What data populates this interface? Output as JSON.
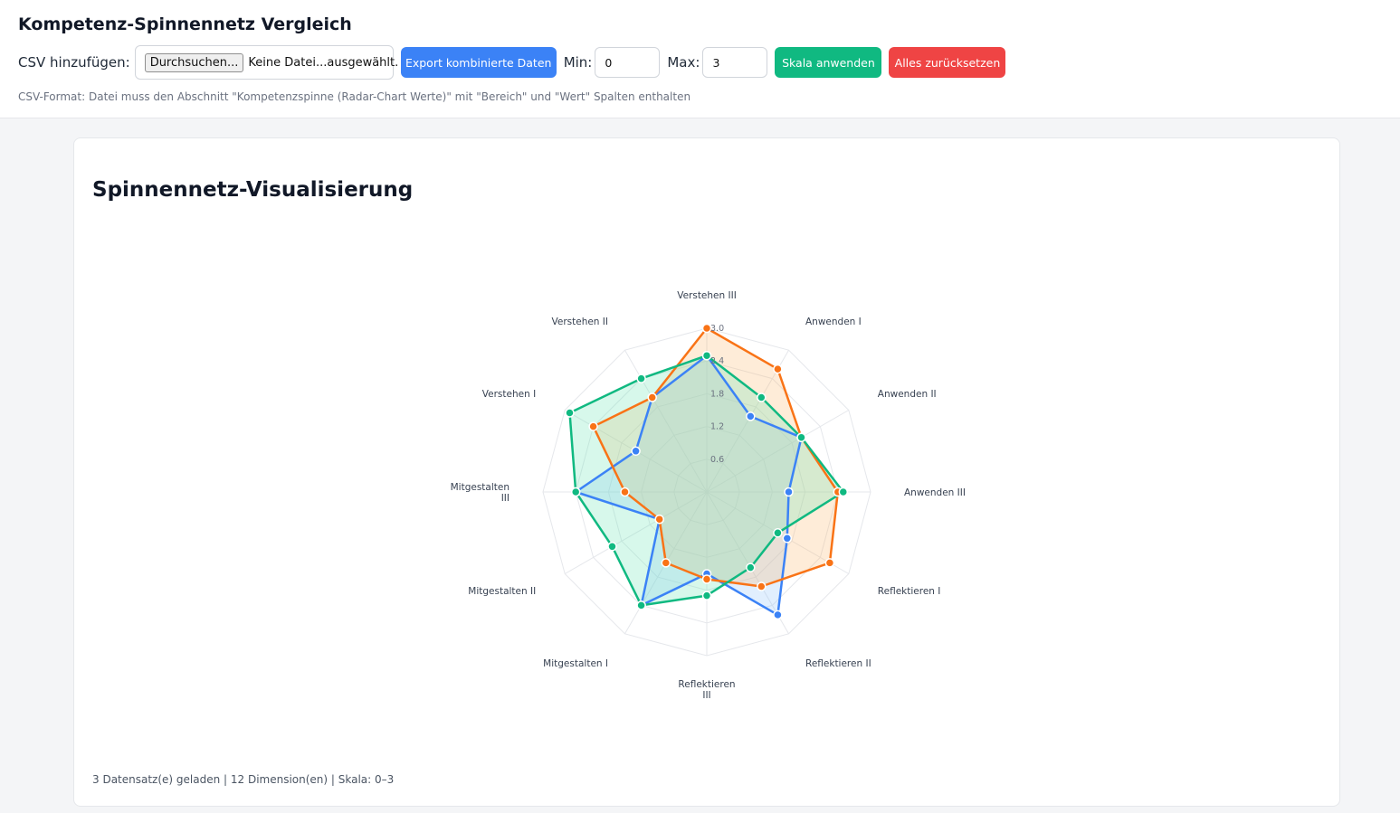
{
  "header": {
    "title": "Kompetenz-Spinnennetz Vergleich",
    "csv_label": "CSV hinzufügen:",
    "file_button": "Durchsuchen...",
    "file_status": "Keine Datei...ausgewählt.",
    "export_button": "Export kombinierte Daten",
    "min_label": "Min:",
    "min_value": "0",
    "max_label": "Max:",
    "max_value": "3",
    "apply_button": "Skala anwenden",
    "reset_button": "Alles zurücksetzen",
    "hint": "CSV-Format: Datei muss den Abschnitt \"Kompetenzspinne (Radar-Chart Werte)\" mit \"Bereich\" und \"Wert\" Spalten enthalten"
  },
  "card": {
    "title": "Spinnennetz-Visualisierung",
    "status": "3 Datensatz(e) geladen | 12 Dimension(en) | Skala: 0–3"
  },
  "colors": {
    "blue": "#3b82f6",
    "orange": "#f97316",
    "green": "#10b981",
    "red": "#ef4444"
  },
  "chart_data": {
    "type": "radar",
    "axes": [
      "Verstehen III",
      "Anwenden I",
      "Anwenden II",
      "Anwenden III",
      "Reflektieren I",
      "Reflektieren II",
      "Reflektieren III",
      "Mitgestalten I",
      "Mitgestalten II",
      "Mitgestalten III",
      "Verstehen I",
      "Verstehen II"
    ],
    "axis_label_lines": [
      [
        "Verstehen III"
      ],
      [
        "Anwenden I"
      ],
      [
        "Anwenden II"
      ],
      [
        "Anwenden III"
      ],
      [
        "Reflektieren I"
      ],
      [
        "Reflektieren II"
      ],
      [
        "Reflektieren",
        "III"
      ],
      [
        "Mitgestalten I"
      ],
      [
        "Mitgestalten II"
      ],
      [
        "Mitgestalten",
        "III"
      ],
      [
        "Verstehen I"
      ],
      [
        "Verstehen II"
      ]
    ],
    "range": [
      0,
      3
    ],
    "ticks": [
      0.6,
      1.2,
      1.8,
      2.4,
      3.0
    ],
    "tick_labels": [
      "0.6",
      "1.2",
      "1.8",
      "2.4",
      "3.0"
    ],
    "grid": true,
    "series": [
      {
        "color": "#3b82f6",
        "fill": "#93c5fd",
        "values": [
          2.5,
          1.6,
          2.0,
          1.5,
          1.7,
          2.6,
          1.5,
          2.4,
          1.0,
          2.4,
          1.5,
          2.0
        ]
      },
      {
        "color": "#f97316",
        "fill": "#fdba74",
        "values": [
          3.0,
          2.6,
          2.0,
          2.4,
          2.6,
          2.0,
          1.6,
          1.5,
          1.0,
          1.5,
          2.4,
          2.0
        ]
      },
      {
        "color": "#10b981",
        "fill": "#6ee7b7",
        "values": [
          2.5,
          2.0,
          2.0,
          2.5,
          1.5,
          1.6,
          1.9,
          2.4,
          2.0,
          2.4,
          2.9,
          2.4
        ]
      }
    ]
  }
}
